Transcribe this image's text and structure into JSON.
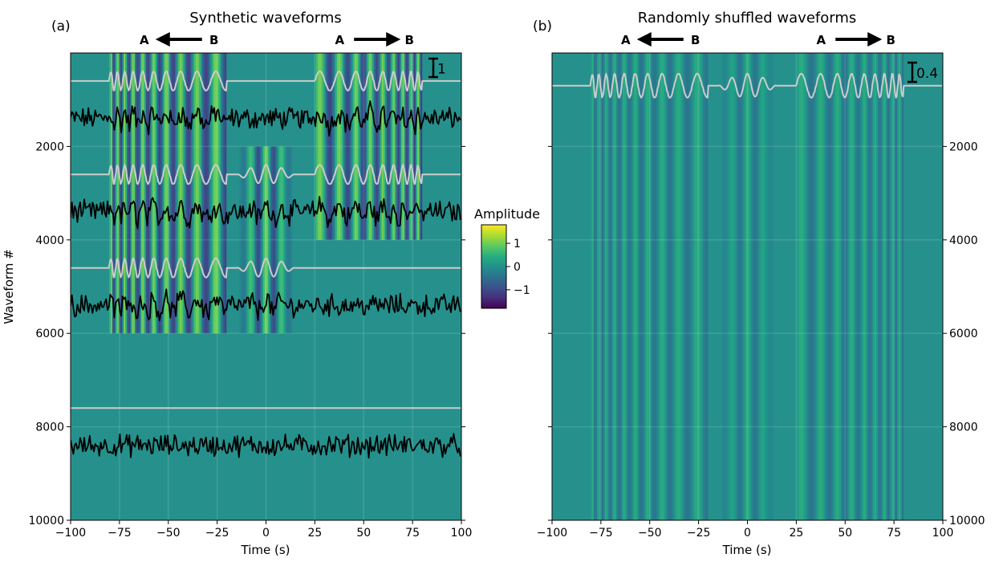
{
  "chart_data": [
    {
      "panel": "(a)",
      "type": "heatmap",
      "title": "Synthetic waveforms",
      "xlabel": "Time (s)",
      "ylabel": "Waveform #",
      "xlim": [
        -100,
        100
      ],
      "ylim": [
        10000,
        0
      ],
      "xticks": [
        -100,
        -75,
        -50,
        -25,
        0,
        25,
        50,
        75,
        100
      ],
      "yticks": [
        2000,
        4000,
        6000,
        8000,
        10000
      ],
      "grid": true,
      "direction_markers": [
        {
          "from": "A",
          "to": "B",
          "arrow_points": "left",
          "x_center": -50
        },
        {
          "from": "A",
          "to": "B",
          "arrow_points": "right",
          "x_center": 50
        }
      ],
      "scale_bar": {
        "label": "1",
        "value": 1
      },
      "bands": [
        {
          "rows": [
            0,
            6000
          ],
          "signal": "chirp",
          "t_start": -80,
          "t_end": -20,
          "period_start": 3,
          "period_end": 11
        },
        {
          "rows": [
            0,
            4000
          ],
          "signal": "chirp",
          "t_start": 25,
          "t_end": 80,
          "period_start": 11,
          "period_end": 3
        },
        {
          "rows": [
            2000,
            6000
          ],
          "signal": "pulse",
          "t_start": -15,
          "t_end": 15,
          "period": 8
        }
      ],
      "traces": [
        {
          "kind": "clean",
          "color": "#cccccc",
          "baseline": 600,
          "components": [
            "chirp_left",
            "chirp_right"
          ]
        },
        {
          "kind": "noisy",
          "color": "#000000",
          "baseline": 1400,
          "components": [
            "chirp_left",
            "chirp_right"
          ]
        },
        {
          "kind": "clean",
          "color": "#cccccc",
          "baseline": 2600,
          "components": [
            "chirp_left",
            "pulse",
            "chirp_right"
          ]
        },
        {
          "kind": "noisy",
          "color": "#000000",
          "baseline": 3400,
          "components": [
            "chirp_left",
            "pulse",
            "chirp_right"
          ]
        },
        {
          "kind": "clean",
          "color": "#cccccc",
          "baseline": 4600,
          "components": [
            "chirp_left",
            "pulse"
          ]
        },
        {
          "kind": "noisy",
          "color": "#000000",
          "baseline": 5400,
          "components": [
            "chirp_left",
            "pulse"
          ]
        },
        {
          "kind": "clean",
          "color": "#cccccc",
          "baseline": 7600,
          "components": []
        },
        {
          "kind": "noisy",
          "color": "#000000",
          "baseline": 8400,
          "components": []
        }
      ]
    },
    {
      "panel": "(b)",
      "type": "heatmap",
      "title": "Randomly shuffled waveforms",
      "xlabel": "Time (s)",
      "ylabel": "",
      "xlim": [
        -100,
        100
      ],
      "ylim": [
        10000,
        0
      ],
      "xticks": [
        -100,
        -75,
        -50,
        -25,
        0,
        25,
        50,
        75,
        100
      ],
      "yticks": [
        2000,
        4000,
        6000,
        8000,
        10000
      ],
      "ytick_side": "right",
      "grid": true,
      "direction_markers": [
        {
          "from": "A",
          "to": "B",
          "arrow_points": "left",
          "x_center": -50
        },
        {
          "from": "A",
          "to": "B",
          "arrow_points": "right",
          "x_center": 50
        }
      ],
      "scale_bar": {
        "label": "0.4",
        "value": 0.4
      },
      "traces": [
        {
          "kind": "stack",
          "color": "#cccccc",
          "baseline": 700,
          "components": [
            "chirp_left",
            "pulse",
            "chirp_right"
          ]
        }
      ]
    }
  ],
  "colorbar": {
    "title": "Amplitude",
    "colormap": "viridis",
    "range": [
      -1.8,
      1.8
    ],
    "ticks": [
      1,
      0,
      -1
    ],
    "tick_labels": [
      "1",
      "0",
      "−1"
    ]
  },
  "colors": {
    "background": "#26918c",
    "clean_trace": "#cccccc",
    "noisy_trace": "#000000"
  }
}
